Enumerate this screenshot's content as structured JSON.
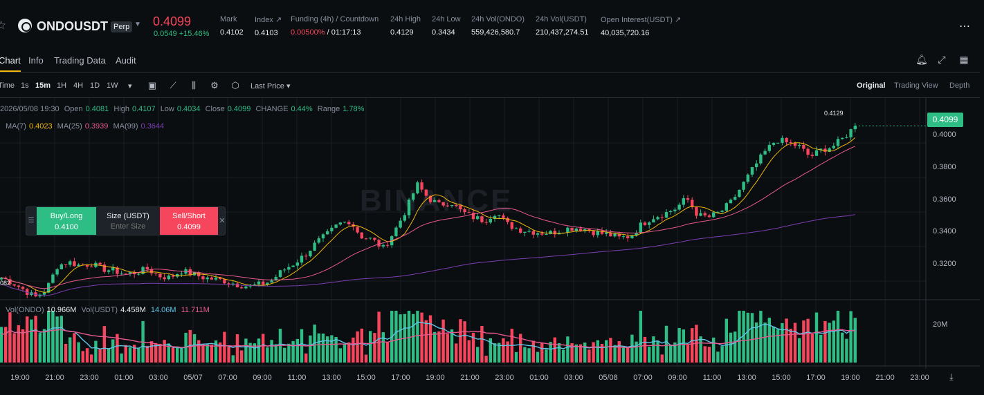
{
  "header": {
    "symbol": "ONDOUSDT",
    "contract_type": "Perp",
    "last_price": "0.4099",
    "change": "0.0549 +15.46%",
    "stats": [
      {
        "label": "Mark",
        "value": "0.4102"
      },
      {
        "label": "Index ↗",
        "value": "0.4103"
      },
      {
        "label": "Funding (4h) / Countdown",
        "value_red": "0.00500%",
        "value": " / 01:17:13"
      },
      {
        "label": "24h High",
        "value": "0.4129"
      },
      {
        "label": "24h Low",
        "value": "0.3434"
      },
      {
        "label": "24h Vol(ONDO)",
        "value": "559,426,580.7"
      },
      {
        "label": "24h Vol(USDT)",
        "value": "210,437,274.51"
      },
      {
        "label": "Open Interest(USDT) ↗",
        "value": "40,035,720.16"
      }
    ]
  },
  "tabs": [
    "Chart",
    "Info",
    "Trading Data",
    "Audit"
  ],
  "toolbar": {
    "timeframes": [
      "Time",
      "1s",
      "15m",
      "1H",
      "4H",
      "1D",
      "1W"
    ],
    "active_timeframe": "15m",
    "price_type": "Last Price",
    "views": [
      "Original",
      "Trading View",
      "Depth"
    ],
    "active_view": "Original"
  },
  "legend": {
    "datetime": "2026/05/08 19:30",
    "open_label": "Open",
    "open": "0.4081",
    "high_label": "High",
    "high": "0.4107",
    "low_label": "Low",
    "low": "0.4034",
    "close_label": "Close",
    "close": "0.4099",
    "change_label": "CHANGE",
    "change": "0.44%",
    "range_label": "Range",
    "range": "1.78%",
    "ma7_label": "MA(7)",
    "ma7": "0.4023",
    "ma25_label": "MA(25)",
    "ma25": "0.3939",
    "ma99_label": "MA(99)",
    "ma99": "0.3644"
  },
  "volume_legend": {
    "vol_ondo_label": "Vol(ONDO)",
    "vol_ondo": "10.966M",
    "vol_usdt_label": "Vol(USDT)",
    "vol_usdt": "4.458M",
    "ma1": "14.06M",
    "ma2": "11.711M"
  },
  "order_widget": {
    "buy_label": "Buy/Long",
    "buy_price": "0.4100",
    "size_label": "Size (USDT)",
    "size_placeholder": "Enter Size",
    "sell_label": "Sell/Short",
    "sell_price": "0.4099"
  },
  "price_axis": {
    "current_price": "0.4099",
    "ticks": [
      "0.4000",
      "0.3800",
      "0.3600",
      "0.3400",
      "0.3200"
    ],
    "high_marker": "0.4129",
    "low_marker": "082"
  },
  "volume_axis": {
    "ticks": [
      "20M"
    ]
  },
  "time_axis": [
    "19:00",
    "21:00",
    "23:00",
    "01:00",
    "03:00",
    "05/07",
    "07:00",
    "09:00",
    "11:00",
    "13:00",
    "15:00",
    "17:00",
    "19:00",
    "21:00",
    "23:00",
    "01:00",
    "03:00",
    "05/08",
    "07:00",
    "09:00",
    "11:00",
    "13:00",
    "15:00",
    "17:00",
    "19:00",
    "21:00",
    "23:00"
  ],
  "watermark": "BINANCE",
  "colors": {
    "up": "#2ebd85",
    "down": "#f6465d",
    "ma7": "#f0b90b",
    "ma25": "#e8588f",
    "ma99": "#7b3fb0",
    "vol_ma1": "#5fc5e8",
    "vol_ma2": "#e8588f"
  },
  "chart_data": {
    "type": "candlestick",
    "interval": "15m",
    "ylim": [
      0.31,
      0.418
    ],
    "price_path": [
      0.322,
      0.319,
      0.315,
      0.3105,
      0.315,
      0.329,
      0.331,
      0.329,
      0.33,
      0.327,
      0.326,
      0.324,
      0.325,
      0.327,
      0.323,
      0.322,
      0.326,
      0.324,
      0.322,
      0.321,
      0.32,
      0.318,
      0.317,
      0.318,
      0.32,
      0.326,
      0.33,
      0.335,
      0.342,
      0.347,
      0.353,
      0.355,
      0.346,
      0.344,
      0.339,
      0.349,
      0.361,
      0.376,
      0.368,
      0.364,
      0.366,
      0.36,
      0.357,
      0.355,
      0.36,
      0.353,
      0.35,
      0.349,
      0.348,
      0.348,
      0.35,
      0.351,
      0.35,
      0.348,
      0.347,
      0.345,
      0.346,
      0.353,
      0.357,
      0.359,
      0.362,
      0.368,
      0.358,
      0.357,
      0.36,
      0.366,
      0.376,
      0.386,
      0.395,
      0.402,
      0.4,
      0.398,
      0.392,
      0.396,
      0.398,
      0.403,
      0.4099
    ],
    "candles_count": 200,
    "ma_periods": [
      7,
      25,
      99
    ]
  }
}
